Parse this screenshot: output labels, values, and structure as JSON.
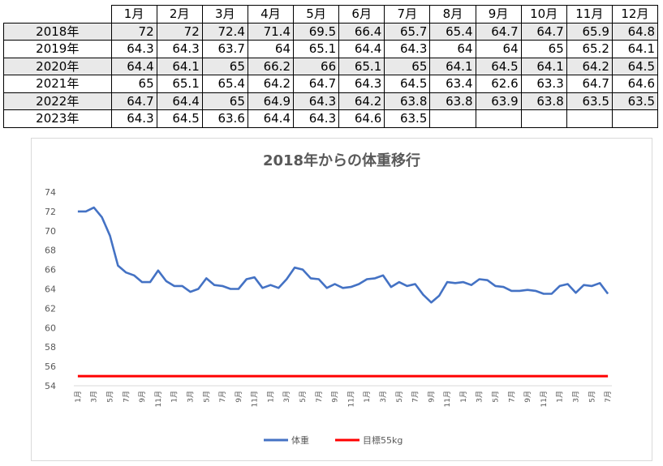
{
  "table": {
    "months": [
      "1月",
      "2月",
      "3月",
      "4月",
      "5月",
      "6月",
      "7月",
      "8月",
      "9月",
      "10月",
      "11月",
      "12月"
    ],
    "rows": [
      {
        "year": "2018年",
        "values": [
          "72",
          "72",
          "72.4",
          "71.4",
          "69.5",
          "66.4",
          "65.7",
          "65.4",
          "64.7",
          "64.7",
          "65.9",
          "64.8"
        ]
      },
      {
        "year": "2019年",
        "values": [
          "64.3",
          "64.3",
          "63.7",
          "64",
          "65.1",
          "64.4",
          "64.3",
          "64",
          "64",
          "65",
          "65.2",
          "64.1"
        ]
      },
      {
        "year": "2020年",
        "values": [
          "64.4",
          "64.1",
          "65",
          "66.2",
          "66",
          "65.1",
          "65",
          "64.1",
          "64.5",
          "64.1",
          "64.2",
          "64.5"
        ]
      },
      {
        "year": "2021年",
        "values": [
          "65",
          "65.1",
          "65.4",
          "64.2",
          "64.7",
          "64.3",
          "64.5",
          "63.4",
          "62.6",
          "63.3",
          "64.7",
          "64.6"
        ]
      },
      {
        "year": "2022年",
        "values": [
          "64.7",
          "64.4",
          "65",
          "64.9",
          "64.3",
          "64.2",
          "63.8",
          "63.8",
          "63.9",
          "63.8",
          "63.5",
          "63.5"
        ]
      },
      {
        "year": "2023年",
        "values": [
          "64.3",
          "64.5",
          "63.6",
          "64.4",
          "64.3",
          "64.6",
          "63.5",
          "",
          "",
          "",
          "",
          ""
        ]
      }
    ]
  },
  "chart_data": {
    "type": "line",
    "title": "2018年からの体重移行",
    "xlabel": "",
    "ylabel": "",
    "ylim": [
      54,
      74
    ],
    "yticks": [
      54,
      56,
      58,
      60,
      62,
      64,
      66,
      68,
      70,
      72,
      74
    ],
    "grid": false,
    "legend_position": "bottom",
    "x": [
      "1月",
      "2月",
      "3月",
      "4月",
      "5月",
      "6月",
      "7月",
      "8月",
      "9月",
      "10月",
      "11月",
      "12月",
      "1月",
      "2月",
      "3月",
      "4月",
      "5月",
      "6月",
      "7月",
      "8月",
      "9月",
      "10月",
      "11月",
      "12月",
      "1月",
      "2月",
      "3月",
      "4月",
      "5月",
      "6月",
      "7月",
      "8月",
      "9月",
      "10月",
      "11月",
      "12月",
      "1月",
      "2月",
      "3月",
      "4月",
      "5月",
      "6月",
      "7月",
      "8月",
      "9月",
      "10月",
      "11月",
      "12月",
      "1月",
      "2月",
      "3月",
      "4月",
      "5月",
      "6月",
      "7月",
      "8月",
      "9月",
      "10月",
      "11月",
      "12月",
      "1月",
      "2月",
      "3月",
      "4月",
      "5月",
      "6月",
      "7月"
    ],
    "x_tick_labels": [
      "1月",
      "3月",
      "5月",
      "7月",
      "9月",
      "11月",
      "1月",
      "3月",
      "5月",
      "7月",
      "9月",
      "11月",
      "1月",
      "3月",
      "5月",
      "7月",
      "9月",
      "11月",
      "1月",
      "3月",
      "5月",
      "7月",
      "9月",
      "11月",
      "1月",
      "3月",
      "5月",
      "7月",
      "9月",
      "11月",
      "1月",
      "3月",
      "5月",
      "7月"
    ],
    "series": [
      {
        "name": "体重",
        "color": "#4472c4",
        "values": [
          72,
          72,
          72.4,
          71.4,
          69.5,
          66.4,
          65.7,
          65.4,
          64.7,
          64.7,
          65.9,
          64.8,
          64.3,
          64.3,
          63.7,
          64,
          65.1,
          64.4,
          64.3,
          64,
          64,
          65,
          65.2,
          64.1,
          64.4,
          64.1,
          65,
          66.2,
          66,
          65.1,
          65,
          64.1,
          64.5,
          64.1,
          64.2,
          64.5,
          65,
          65.1,
          65.4,
          64.2,
          64.7,
          64.3,
          64.5,
          63.4,
          62.6,
          63.3,
          64.7,
          64.6,
          64.7,
          64.4,
          65,
          64.9,
          64.3,
          64.2,
          63.8,
          63.8,
          63.9,
          63.8,
          63.5,
          63.5,
          64.3,
          64.5,
          63.6,
          64.4,
          64.3,
          64.6,
          63.5
        ]
      },
      {
        "name": "目標55kg",
        "color": "#ff0000",
        "constant": 55
      }
    ]
  }
}
